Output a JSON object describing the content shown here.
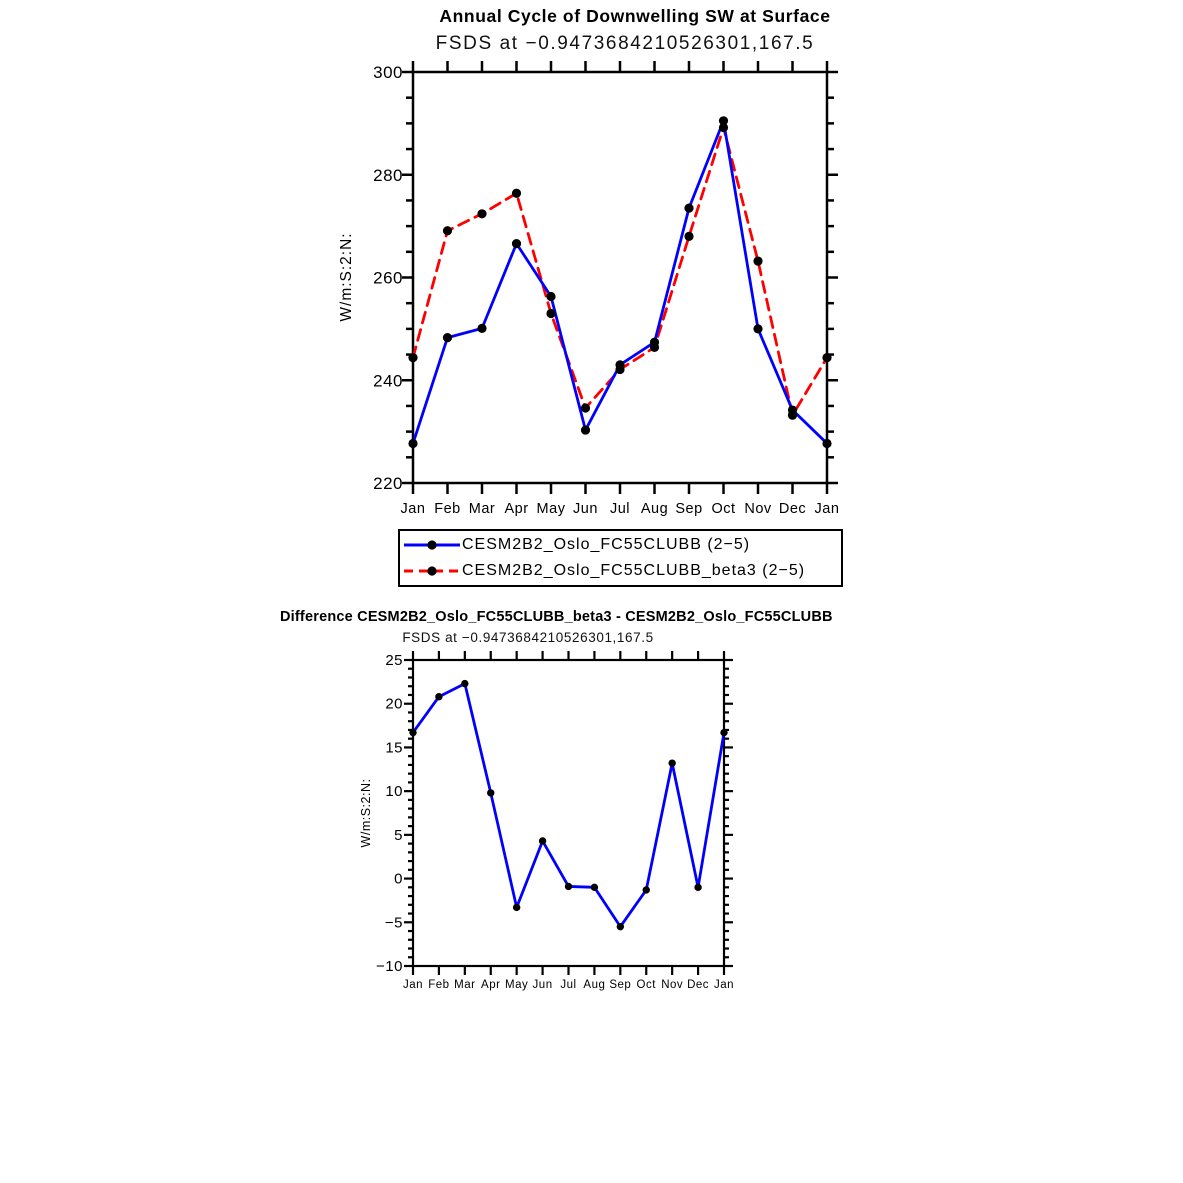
{
  "page": {
    "background": "#ffffff"
  },
  "chart_data": [
    {
      "id": "annual-cycle",
      "type": "line",
      "title": "Annual Cycle of Downwelling SW at Surface",
      "subtitle": "FSDS at −0.9473684210526301,167.5",
      "xlabel": "",
      "ylabel": "W/m:S:2:N:",
      "categories": [
        "Jan",
        "Feb",
        "Mar",
        "Apr",
        "May",
        "Jun",
        "Jul",
        "Aug",
        "Sep",
        "Oct",
        "Nov",
        "Dec",
        "Jan"
      ],
      "ylim": [
        220,
        300
      ],
      "ytick_major": 20,
      "ytick_minor": 5,
      "ytick_labels": [
        "220",
        "240",
        "260",
        "280",
        "300"
      ],
      "grid": false,
      "frame_color": "#000000",
      "legend_position": "below",
      "series": [
        {
          "name": "CESM2B2_Oslo_FC55CLUBB (2−5)",
          "color": "#0000ff",
          "line": "solid",
          "marker": "filled-circle",
          "marker_color": "#000000",
          "values": [
            227.7,
            248.3,
            250.1,
            266.6,
            256.3,
            230.3,
            243.0,
            247.4,
            273.5,
            290.5,
            250.0,
            234.2,
            227.7
          ]
        },
        {
          "name": "CESM2B2_Oslo_FC55CLUBB_beta3 (2−5)",
          "color": "#ff0000",
          "line": "dashed",
          "marker": "filled-circle",
          "marker_color": "#000000",
          "values": [
            244.4,
            269.1,
            272.4,
            276.4,
            253.0,
            234.6,
            242.1,
            246.4,
            268.0,
            289.2,
            263.2,
            233.2,
            244.4
          ]
        }
      ]
    },
    {
      "id": "difference",
      "type": "line",
      "title": "Difference CESM2B2_Oslo_FC55CLUBB_beta3 - CESM2B2_Oslo_FC55CLUBB",
      "subtitle": "FSDS at −0.9473684210526301,167.5",
      "xlabel": "",
      "ylabel": "W/m:S:2:N:",
      "categories": [
        "Jan",
        "Feb",
        "Mar",
        "Apr",
        "May",
        "Jun",
        "Jul",
        "Aug",
        "Sep",
        "Oct",
        "Nov",
        "Dec",
        "Jan"
      ],
      "ylim": [
        -10,
        25
      ],
      "ytick_major": 5,
      "ytick_minor": 1,
      "ytick_labels": [
        "−10",
        "−5",
        "0",
        "5",
        "10",
        "15",
        "20",
        "25"
      ],
      "grid": false,
      "frame_color": "#000000",
      "legend_position": "none",
      "series": [
        {
          "name": "CESM2B2_Oslo_FC55CLUBB_beta3 - CESM2B2_Oslo_FC55CLUBB",
          "color": "#0000ff",
          "line": "solid",
          "marker": "filled-circle",
          "marker_color": "#000000",
          "values": [
            16.7,
            20.8,
            22.3,
            9.8,
            -3.3,
            4.3,
            -0.9,
            -1.0,
            -5.5,
            -1.3,
            13.2,
            -1.0,
            16.7
          ]
        }
      ]
    }
  ]
}
